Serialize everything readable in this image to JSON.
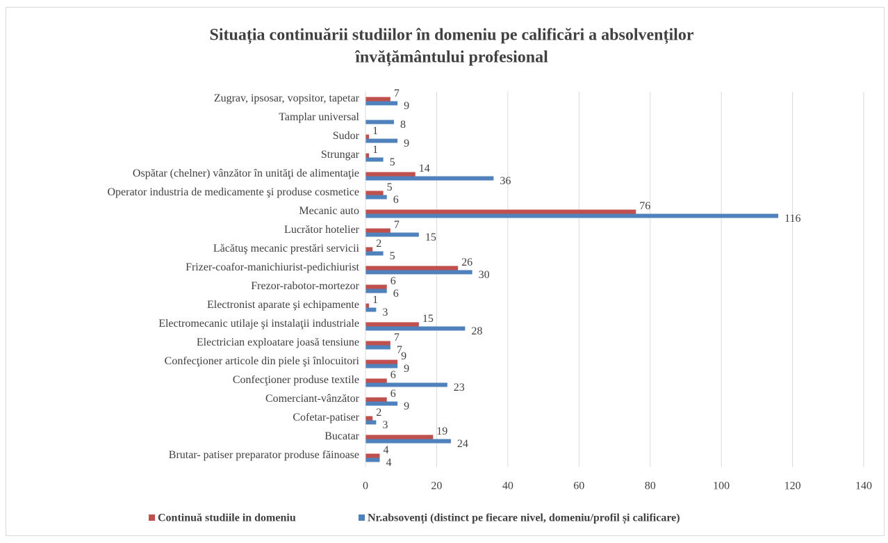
{
  "chart_data": {
    "type": "hbar",
    "title": [
      "Situația continuării studiilor în domeniu pe calificări a absolvenților",
      "învățământului profesional"
    ],
    "categories": [
      "Brutar- patiser preparator produse făinoase",
      "Bucatar",
      "Cofetar-patiser",
      "Comerciant-vânzător",
      "Confecţioner produse textile",
      "Confecţioner articole din piele şi înlocuitori",
      "Electrician exploatare joasă tensiune ",
      "Electromecanic utilaje şi instalaţii industriale",
      "Electronist aparate şi echipamente",
      "Frezor-rabotor-mortezor",
      "Frizer-coafor-manichiurist-pedichiurist",
      "Lăcătuş mecanic prestări servicii",
      "Lucrător hotelier",
      "Mecanic auto",
      "Operator industria de medicamente şi produse cosmetice",
      "Ospătar (chelner) vânzător în unităţi de alimentaţie",
      "Strungar",
      "Sudor",
      "Tamplar universal",
      "Zugrav, ipsosar, vopsitor, tapetar"
    ],
    "series": [
      {
        "name": "Continuă studiile in domeniu",
        "color": "#c0504d",
        "values": [
          4,
          19,
          2,
          6,
          6,
          9,
          7,
          15,
          1,
          6,
          26,
          2,
          7,
          76,
          5,
          14,
          1,
          1,
          null,
          7
        ]
      },
      {
        "name": "Nr.absovenți (distinct pe fiecare nivel, domeniu/profil și calificare)",
        "color": "#4f81bd",
        "values": [
          4,
          24,
          3,
          9,
          23,
          9,
          7,
          28,
          3,
          6,
          30,
          5,
          15,
          116,
          6,
          36,
          5,
          9,
          8,
          9
        ]
      }
    ],
    "xlim": [
      0,
      140
    ],
    "xticks": [
      0,
      20,
      40,
      60,
      80,
      100,
      120,
      140
    ],
    "grid": true,
    "legend": "bottom"
  }
}
